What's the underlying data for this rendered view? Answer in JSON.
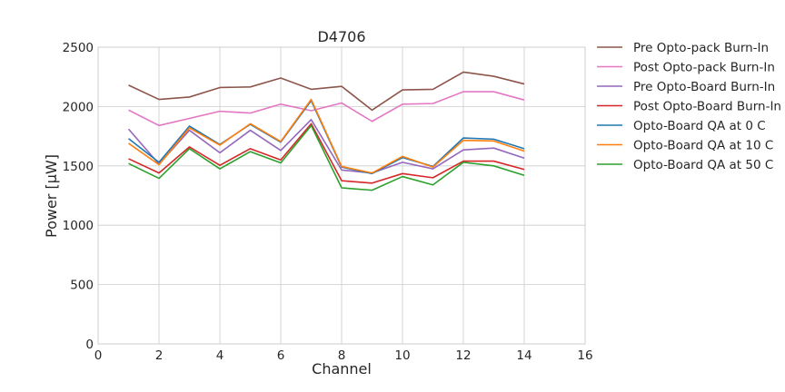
{
  "chart_data": {
    "type": "line",
    "title": "D4706",
    "xlabel": "Channel",
    "ylabel": "Power [μW]",
    "xlim": [
      0,
      16
    ],
    "ylim": [
      0,
      2500
    ],
    "xticks": [
      0,
      2,
      4,
      6,
      8,
      10,
      12,
      14,
      16
    ],
    "yticks": [
      0,
      500,
      1000,
      1500,
      2000,
      2500
    ],
    "grid": true,
    "legend_position": "outside-right",
    "x": [
      1,
      2,
      3,
      4,
      5,
      6,
      7,
      8,
      9,
      10,
      11,
      12,
      13,
      14
    ],
    "series": [
      {
        "name": "Pre Opto-pack Burn-In",
        "color": "#8c564b",
        "values": [
          2180,
          2060,
          2080,
          2160,
          2165,
          2240,
          2145,
          2170,
          1970,
          2140,
          2145,
          2290,
          2255,
          2190
        ]
      },
      {
        "name": "Post Opto-pack Burn-In",
        "color": "#e377c2",
        "values": [
          1970,
          1840,
          1900,
          1960,
          1945,
          2020,
          1965,
          2030,
          1875,
          2020,
          2025,
          2125,
          2125,
          2055
        ]
      },
      {
        "name": "Pre Opto-Board Burn-In",
        "color": "#9467bd",
        "values": [
          1810,
          1515,
          1800,
          1610,
          1800,
          1630,
          1890,
          1465,
          1440,
          1530,
          1475,
          1635,
          1650,
          1565
        ]
      },
      {
        "name": "Post Opto-Board Burn-In",
        "color": "#d62728",
        "values": [
          1560,
          1440,
          1660,
          1505,
          1645,
          1550,
          1855,
          1375,
          1355,
          1435,
          1400,
          1540,
          1540,
          1470
        ]
      },
      {
        "name": "Opto-Board QA at 0 C",
        "color": "#1f77b4",
        "values": [
          1730,
          1530,
          1835,
          1680,
          1850,
          1700,
          2050,
          1490,
          1435,
          1570,
          1495,
          1735,
          1725,
          1645
        ]
      },
      {
        "name": "Opto-Board QA at 10 C",
        "color": "#ff7f0e",
        "values": [
          1690,
          1510,
          1820,
          1675,
          1855,
          1705,
          2060,
          1495,
          1440,
          1580,
          1490,
          1715,
          1710,
          1625
        ]
      },
      {
        "name": "Opto-Board QA at 50 C",
        "color": "#2ca02c",
        "values": [
          1520,
          1395,
          1645,
          1475,
          1620,
          1525,
          1840,
          1315,
          1295,
          1410,
          1340,
          1530,
          1500,
          1420
        ]
      }
    ]
  }
}
